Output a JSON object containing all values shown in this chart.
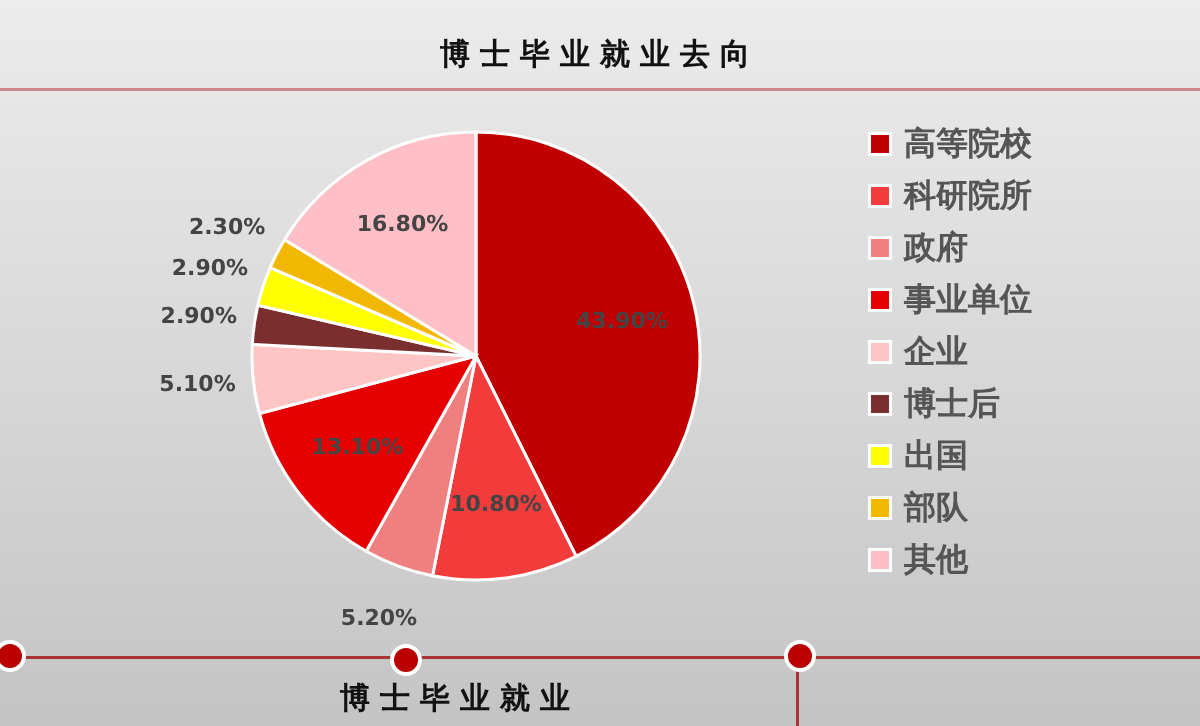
{
  "chart_data": {
    "type": "pie",
    "title": "博士毕业就业去向",
    "categories": [
      "高等院校",
      "科研院所",
      "政府",
      "事业单位",
      "企业",
      "博士后",
      "出国",
      "部队",
      "其他"
    ],
    "values": [
      43.9,
      10.8,
      5.2,
      13.1,
      5.1,
      2.9,
      2.9,
      2.3,
      16.8
    ],
    "value_labels": [
      "43.90%",
      "10.80%",
      "5.20%",
      "13.10%",
      "5.10%",
      "2.90%",
      "2.90%",
      "2.30%",
      "16.80%"
    ],
    "colors": [
      "#c00000",
      "#f23c3c",
      "#f08080",
      "#e60000",
      "#ffc4c4",
      "#7b2e2e",
      "#ffff00",
      "#f2b800",
      "#ffbfc6"
    ],
    "legend": "right",
    "annotations": [
      "博士毕业就业"
    ]
  }
}
